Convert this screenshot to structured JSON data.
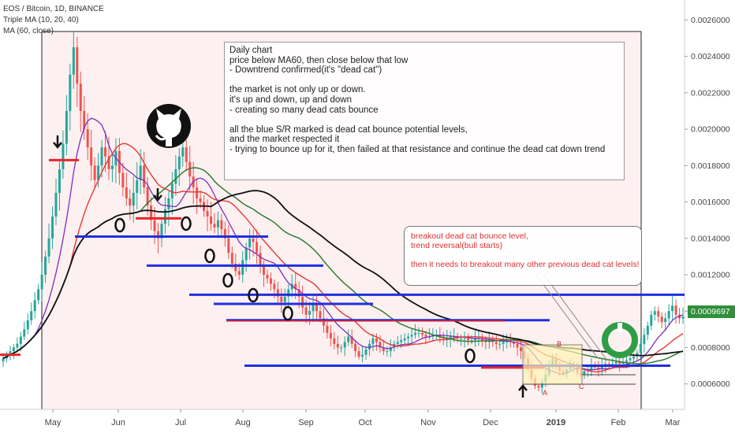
{
  "header": {
    "symbol": "EOS / Bitcoin, 1D, BINANCE",
    "indicator1": "Triple MA (10, 20, 40)",
    "indicator2": "MA (60, close)"
  },
  "last_price": "0.0009697",
  "colors": {
    "up": "#26a69a",
    "down": "#ef5350",
    "sr_level": "#1f2fe0",
    "resistance": "#e8262a",
    "ma10": "#7b2fbf",
    "ma20": "#e53935",
    "ma40": "#2e7d32",
    "ma60": "#111111",
    "price_tag": "#2f8f3a"
  },
  "annotations": {
    "main_note": "Daily chart\nprice below MA60, then close below that low\n- Downtrend confirmed(it's \"dead cat\")\n\nthe market is not only up or down.\nit's up and down, up and down\n- creating so many dead cats bounce\n\nall the blue S/R marked is dead cat bounce potential levels,\nand the market respected it\n- trying to bounce up for it, then failed at that resistance and continue the dead cat down trend",
    "breakout_note": "breakout dead cat bounce level,\ntrend reversal(bull starts)\n\nthen it needs to breakout many other previous dead cat levels!",
    "labels": [
      "B",
      "A",
      "C"
    ]
  },
  "chart_data": {
    "type": "candlestick",
    "x_axis": {
      "ticks": [
        "May",
        "Jun",
        "Jul",
        "Aug",
        "Sep",
        "Oct",
        "Nov",
        "Dec",
        "2019",
        "Feb",
        "Mar"
      ]
    },
    "y_axis": {
      "ticks": [
        "0.0006000",
        "0.0008000",
        "0.0010000",
        "0.0012000",
        "0.0014000",
        "0.0016000",
        "0.0018000",
        "0.0020000",
        "0.0022000",
        "0.0024000",
        "0.0026000"
      ],
      "ylim": [
        0.00046,
        0.00271
      ]
    },
    "close_series": [
      0.00074,
      0.00076,
      0.00078,
      0.0008,
      0.00082,
      0.00086,
      0.0009,
      0.00095,
      0.001,
      0.00106,
      0.00112,
      0.0012,
      0.0013,
      0.0014,
      0.00152,
      0.00165,
      0.00178,
      0.00192,
      0.0021,
      0.0023,
      0.00245,
      0.00225,
      0.0021,
      0.002,
      0.0019,
      0.0018,
      0.00172,
      0.0018,
      0.0019,
      0.00185,
      0.00178,
      0.0018,
      0.00188,
      0.00176,
      0.00168,
      0.00162,
      0.00158,
      0.00165,
      0.00172,
      0.0018,
      0.00168,
      0.00158,
      0.0015,
      0.00144,
      0.0014,
      0.00148,
      0.00156,
      0.00162,
      0.0017,
      0.00178,
      0.00185,
      0.0019,
      0.00182,
      0.00174,
      0.00168,
      0.00162,
      0.0016,
      0.00155,
      0.00152,
      0.00148,
      0.00146,
      0.0015,
      0.00145,
      0.0014,
      0.00132,
      0.00126,
      0.00122,
      0.0012,
      0.00128,
      0.00135,
      0.0014,
      0.00138,
      0.00132,
      0.00125,
      0.0012,
      0.00118,
      0.00115,
      0.00112,
      0.00108,
      0.00105,
      0.00108,
      0.00112,
      0.00115,
      0.00112,
      0.00108,
      0.00102,
      0.00098,
      0.001,
      0.00104,
      0.001,
      0.00096,
      0.00092,
      0.00088,
      0.00085,
      0.00082,
      0.0008,
      0.0008,
      0.00083,
      0.00086,
      0.00082,
      0.00078,
      0.00075,
      0.00076,
      0.00079,
      0.00082,
      0.00085,
      0.00083,
      0.0008,
      0.00078,
      0.00078,
      0.0008,
      0.00082,
      0.00083,
      0.00084,
      0.00085,
      0.00086,
      0.00087,
      0.00088,
      0.00088,
      0.00087,
      0.00086,
      0.00086,
      0.00087,
      0.00087,
      0.00086,
      0.00085,
      0.00085,
      0.00086,
      0.00086,
      0.00085,
      0.00085,
      0.00085,
      0.00084,
      0.00084,
      0.00085,
      0.00085,
      0.00084,
      0.00083,
      0.00084,
      0.00083,
      0.00082,
      0.00082,
      0.00083,
      0.00084,
      0.00083,
      0.00082,
      0.0008,
      0.00078,
      0.00074,
      0.00068,
      0.00063,
      0.00059,
      0.00058,
      0.00061,
      0.00065,
      0.0007,
      0.00074,
      0.0007,
      0.00067,
      0.00066,
      0.00068,
      0.00071,
      0.00069,
      0.00066,
      0.00065,
      0.00067,
      0.00068,
      0.0007,
      0.00069,
      0.00068,
      0.0007,
      0.00071,
      0.0007,
      0.00071,
      0.00072,
      0.00071,
      0.00072,
      0.00073,
      0.00074,
      0.00075,
      0.00077,
      0.00082,
      0.00087,
      0.00092,
      0.00098,
      0.001,
      0.00097,
      0.00094,
      0.00096,
      0.001,
      0.00103,
      0.00098,
      0.00096,
      0.00097
    ],
    "sr_levels_blue": [
      0.00141,
      0.00125,
      0.00109,
      0.00104,
      0.00095,
      0.0007
    ],
    "resistance_levels_red": [
      0.00183,
      0.00151,
      0.00069,
      0.00076
    ]
  }
}
